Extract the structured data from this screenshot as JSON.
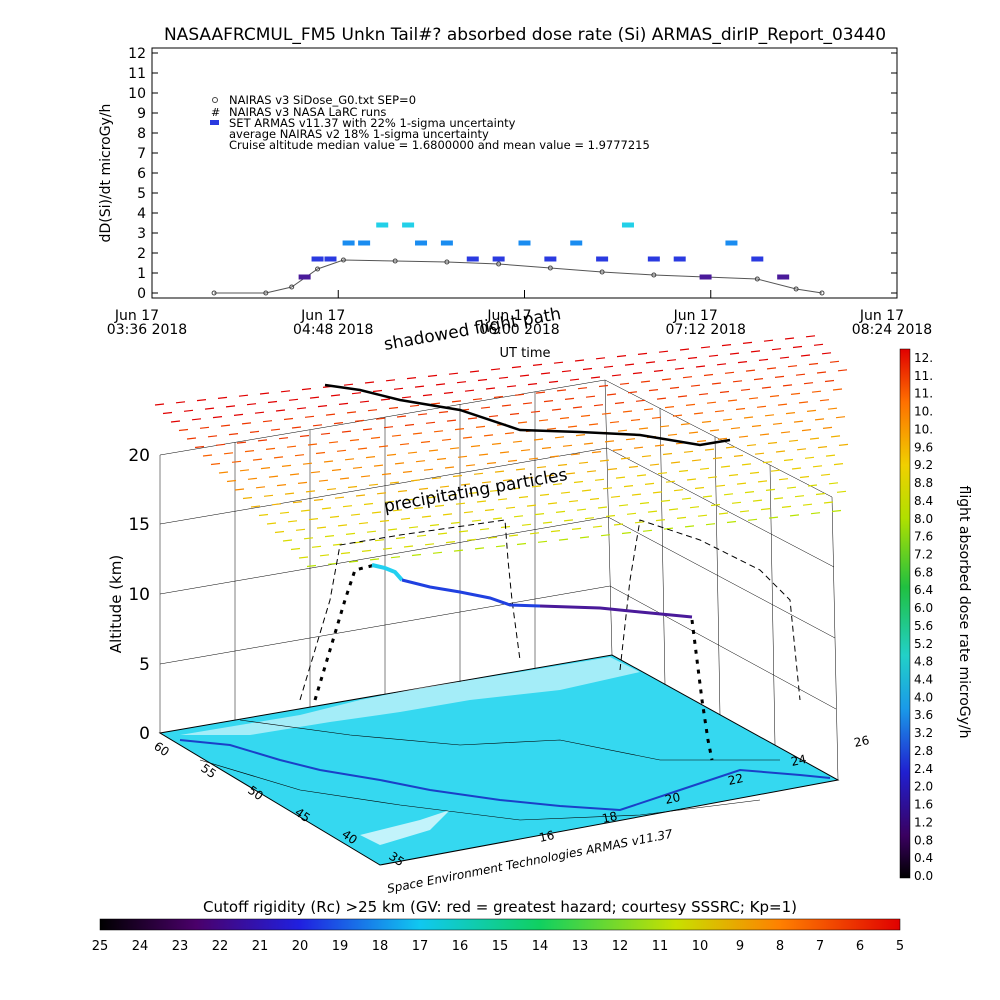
{
  "title": "NASAAFRCMUL_FM5 Unkn Tail#? absorbed dose rate (Si) ARMAS_dirIP_Report_03440",
  "top_chart": {
    "ylabel": "dD(Si)/dt microGy/h",
    "xlabel": "UT time",
    "y_ticks": [
      "0",
      "1",
      "2",
      "3",
      "4",
      "5",
      "6",
      "7",
      "8",
      "9",
      "10",
      "11",
      "12"
    ],
    "x_ticks": [
      {
        "l1": "Jun 17",
        "l2": "03:36 2018"
      },
      {
        "l1": "Jun 17",
        "l2": "04:48 2018"
      },
      {
        "l1": "Jun 17",
        "l2": "06:00 2018"
      },
      {
        "l1": "Jun 17",
        "l2": "07:12 2018"
      },
      {
        "l1": "Jun 17",
        "l2": "08:24 2018"
      }
    ],
    "legend": [
      "NAIRAS v3 SiDose_G0.txt SEP=0",
      "NAIRAS v3 NASA LaRC runs",
      "SET ARMAS v11.37 with 22% 1-sigma uncertainty",
      "average NAIRAS v2 18% 1-sigma uncertainty",
      "Cruise altitude median value = 1.6800000 and mean value = 1.9777215"
    ]
  },
  "chart_data": [
    {
      "type": "scatter",
      "title": "NASAAFRCMUL_FM5 Unkn Tail#? absorbed dose rate (Si) ARMAS_dirIP_Report_03440",
      "xlabel": "UT time",
      "ylabel": "dD(Si)/dt microGy/h",
      "xlim": [
        "2018-06-17 03:36",
        "2018-06-17 08:24"
      ],
      "ylim": [
        0,
        12
      ],
      "series": [
        {
          "name": "NAIRAS v3 SiDose_G0.txt SEP=0",
          "x": [
            "2018-06-17 04:00",
            "2018-06-17 04:20",
            "2018-06-17 04:30",
            "2018-06-17 04:40",
            "2018-06-17 04:50",
            "2018-06-17 05:10",
            "2018-06-17 05:30",
            "2018-06-17 05:50",
            "2018-06-17 06:10",
            "2018-06-17 06:30",
            "2018-06-17 06:50",
            "2018-06-17 07:10",
            "2018-06-17 07:30",
            "2018-06-17 07:45",
            "2018-06-17 07:55"
          ],
          "values": [
            0.0,
            0.0,
            0.3,
            1.2,
            1.65,
            1.6,
            1.55,
            1.45,
            1.25,
            1.05,
            0.9,
            0.8,
            0.7,
            0.2,
            0.0
          ]
        },
        {
          "name": "SET ARMAS v11.37 with 22% 1-sigma uncertainty",
          "x": [
            "2018-06-17 04:35",
            "2018-06-17 04:40",
            "2018-06-17 04:45",
            "2018-06-17 04:52",
            "2018-06-17 04:58",
            "2018-06-17 05:05",
            "2018-06-17 05:15",
            "2018-06-17 05:20",
            "2018-06-17 05:30",
            "2018-06-17 05:40",
            "2018-06-17 05:50",
            "2018-06-17 06:00",
            "2018-06-17 06:10",
            "2018-06-17 06:20",
            "2018-06-17 06:30",
            "2018-06-17 06:40",
            "2018-06-17 06:50",
            "2018-06-17 07:00",
            "2018-06-17 07:10",
            "2018-06-17 07:20",
            "2018-06-17 07:30",
            "2018-06-17 07:40"
          ],
          "values": [
            0.8,
            1.7,
            1.7,
            2.5,
            2.5,
            3.4,
            3.4,
            2.5,
            2.5,
            1.7,
            1.7,
            2.5,
            1.7,
            2.5,
            1.7,
            3.4,
            1.7,
            1.7,
            0.8,
            2.5,
            1.7,
            0.8
          ]
        }
      ]
    },
    {
      "type": "heatmap",
      "title": "shadowed flight path",
      "xlabel": "",
      "ylabel": "Altitude (km)",
      "z_ticks": [
        "0",
        "5",
        "10",
        "15",
        "20"
      ],
      "annotations": [
        "precipitating particles",
        "shadowed flight path"
      ],
      "lon_ticks": [
        "16",
        "18",
        "20",
        "22",
        "24",
        "26"
      ],
      "lat_ticks": [
        "60",
        "55",
        "50",
        "45",
        "40",
        "35"
      ],
      "colorbar": {
        "label": "flight absorbed dose rate microGy/h",
        "labels": [
          "12.",
          "11.",
          "11.",
          "10.",
          "10.",
          "9.6",
          "9.2",
          "8.8",
          "8.4",
          "8.0",
          "7.6",
          "7.2",
          "6.8",
          "6.4",
          "6.0",
          "5.6",
          "5.2",
          "4.8",
          "4.4",
          "4.0",
          "3.6",
          "3.2",
          "2.8",
          "2.4",
          "2.0",
          "1.6",
          "1.2",
          "0.8",
          "0.4",
          "0.0"
        ]
      }
    }
  ],
  "credit": "Space Environment Technologies ARMAS v11.37",
  "rigidity": {
    "title": "Cutoff rigidity (Rc) >25 km (GV: red = greatest hazard; courtesy SSSRC; Kp=1)",
    "labels": [
      "25",
      "24",
      "23",
      "22",
      "21",
      "20",
      "19",
      "18",
      "17",
      "16",
      "15",
      "14",
      "13",
      "12",
      "11",
      "10",
      "9",
      "8",
      "7",
      "6",
      "5"
    ]
  }
}
